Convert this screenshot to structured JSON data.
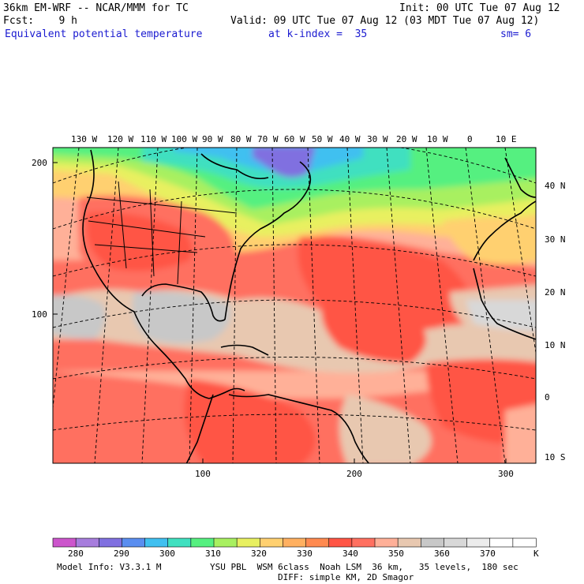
{
  "header": {
    "model": "36km EM-WRF -- NCAR/MMM for TC",
    "init": "Init: 00 UTC Tue 07 Aug 12",
    "fcst": "Fcst:    9 h",
    "valid": "Valid: 09 UTC Tue 07 Aug 12 (03 MDT Tue 07 Aug 12)",
    "field": "Equivalent potential temperature",
    "kindex": "at k-index =  35",
    "sm": "sm= 6"
  },
  "longitude_labels": [
    "130 W",
    "120 W",
    "110 W",
    "100 W",
    "90 W",
    "80 W",
    "70 W",
    "60 W",
    "50 W",
    "40 W",
    "30 W",
    "20 W",
    "10 W",
    "0",
    "10 E"
  ],
  "latitude_labels": [
    "40 N",
    "30 N",
    "20 N",
    "10 N",
    "0",
    "10 S"
  ],
  "grid_y_labels": [
    "200",
    "100"
  ],
  "grid_x_labels": [
    "100",
    "200",
    "300"
  ],
  "colorbar": {
    "colors": [
      "#cc55cc",
      "#a77ddd",
      "#8070e0",
      "#5a8ef0",
      "#40c0f0",
      "#40e0c0",
      "#55f080",
      "#a8f060",
      "#e8f060",
      "#ffd070",
      "#ffb060",
      "#ff8a50",
      "#ff5545",
      "#ff7060",
      "#ffb098",
      "#e8c8b0",
      "#c8c8c8",
      "#d8d8d8",
      "#ececec",
      "#ffffff",
      "#ffffff"
    ],
    "labels": [
      "280",
      "290",
      "300",
      "310",
      "320",
      "330",
      "340",
      "350",
      "360",
      "370"
    ],
    "unit": "K"
  },
  "footer": {
    "model_info": "Model Info: V3.3.1 M",
    "physics1": "YSU PBL  WSM 6class  Noah LSM  36 km,   35 levels,  180 sec",
    "physics2": "DIFF: simple KM, 2D Smagor"
  }
}
